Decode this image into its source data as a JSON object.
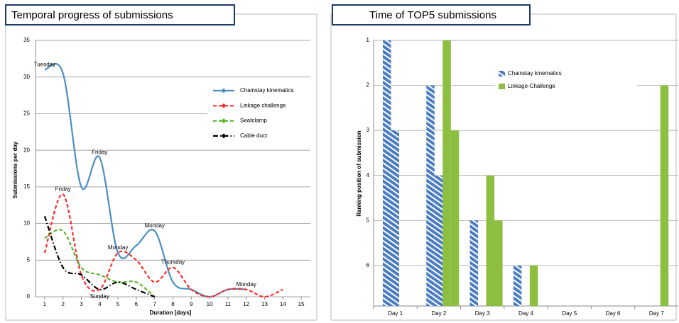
{
  "chart_data": [
    {
      "type": "line",
      "title": "Temporal progress of submissions",
      "xlabel": "Duration [days]",
      "ylabel": "Submissions per day",
      "xlim": [
        0.5,
        15.5
      ],
      "xticks": [
        1,
        2,
        3,
        4,
        5,
        6,
        7,
        8,
        9,
        10,
        11,
        12,
        13,
        14,
        15
      ],
      "ylim": [
        0,
        35
      ],
      "yticks": [
        0,
        5,
        10,
        15,
        20,
        25,
        30,
        35
      ],
      "grid": true,
      "legend": "upper right",
      "series": [
        {
          "name": "Chainstay kinematics",
          "color": "#4a8fc1",
          "style": "solid",
          "x": [
            1,
            2,
            3,
            4,
            5,
            6,
            7,
            8,
            9,
            10,
            11,
            12
          ],
          "values": [
            31,
            30.5,
            15,
            19,
            6,
            7,
            9,
            2,
            1,
            0,
            1,
            1
          ]
        },
        {
          "name": "Linkage challenge",
          "color": "#ff2a2a",
          "style": "dashed",
          "x": [
            1,
            2,
            3,
            4,
            5,
            6,
            7,
            8,
            9,
            10,
            11,
            12,
            13,
            14
          ],
          "values": [
            6,
            14,
            3,
            1,
            6,
            5,
            2,
            4,
            1,
            0,
            1,
            1,
            0,
            1
          ]
        },
        {
          "name": "Seatclamp",
          "color": "#5ab52a",
          "style": "dashed",
          "x": [
            1,
            2,
            3,
            4,
            5,
            6,
            7
          ],
          "values": [
            8,
            9,
            4,
            3,
            2,
            2,
            0
          ]
        },
        {
          "name": "Cable duct",
          "color": "#000000",
          "style": "dashdot",
          "x": [
            1,
            2,
            3,
            4,
            5,
            6,
            7
          ],
          "values": [
            11,
            4,
            3,
            1,
            2,
            1,
            0
          ]
        }
      ],
      "annotations": [
        {
          "text": "Tuesday",
          "x": 1,
          "y": 31,
          "position": "above"
        },
        {
          "text": "Friday",
          "x": 4,
          "y": 19,
          "position": "above"
        },
        {
          "text": "Friday",
          "x": 2,
          "y": 14,
          "position": "above"
        },
        {
          "text": "Monday",
          "x": 7,
          "y": 9,
          "position": "above"
        },
        {
          "text": "Monday",
          "x": 5,
          "y": 6,
          "position": "above"
        },
        {
          "text": "Thursday",
          "x": 8,
          "y": 4,
          "position": "above"
        },
        {
          "text": "Sunday",
          "x": 4,
          "y": 1,
          "position": "below"
        },
        {
          "text": "Monday",
          "x": 12,
          "y": 1,
          "position": "above"
        }
      ]
    },
    {
      "type": "bar",
      "title": "Time of TOP5 submissions",
      "ylabel": "Ranking position of submission",
      "categories": [
        "Day 1",
        "Day 2",
        "Day 3",
        "Day 4",
        "Day 5",
        "Day 6",
        "Day 7"
      ],
      "ylim": [
        1,
        6.9
      ],
      "inverted": true,
      "yticks": [
        1,
        2,
        3,
        4,
        5,
        6
      ],
      "grid": true,
      "legend": "upper right",
      "series": [
        {
          "name": "Chainstay kinematics",
          "color": "#4a7cc0",
          "hatch": true,
          "values": [
            [
              1,
              3
            ],
            [
              2,
              4
            ],
            [
              5,
              null
            ],
            [
              6,
              null
            ],
            [
              null,
              null
            ],
            [
              null,
              null
            ],
            [
              null,
              null
            ]
          ]
        },
        {
          "name": "Linkage-Challenge",
          "color": "#8cbf3f",
          "hatch": false,
          "values": [
            [
              null,
              null
            ],
            [
              1,
              3
            ],
            [
              4,
              5
            ],
            [
              6,
              null
            ],
            [
              null,
              null
            ],
            [
              null,
              null
            ],
            [
              2,
              null
            ]
          ]
        }
      ]
    }
  ]
}
